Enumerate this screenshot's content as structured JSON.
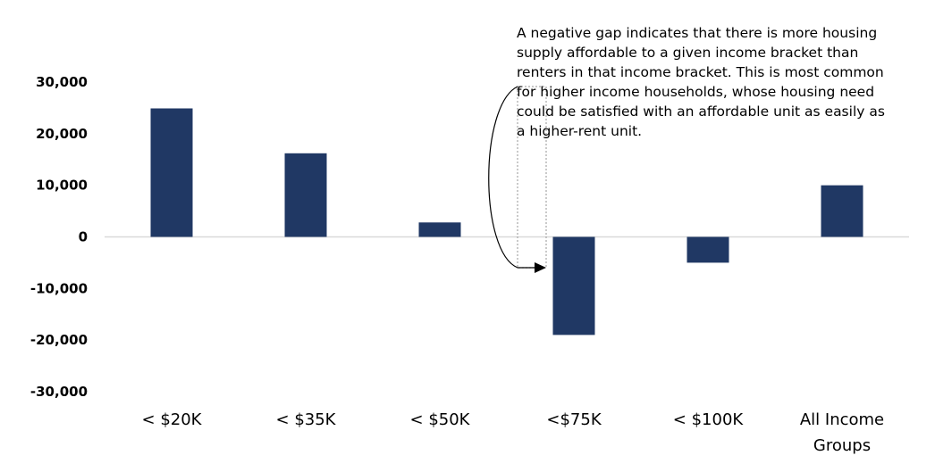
{
  "chart_data": {
    "type": "bar",
    "categories": [
      "< $20K",
      "< $35K",
      "< $50K",
      "<$75K",
      "< $100K",
      "All Income Groups"
    ],
    "category_lines": [
      [
        "< $20K"
      ],
      [
        "< $35K"
      ],
      [
        "< $50K"
      ],
      [
        "<$75K"
      ],
      [
        "< $100K"
      ],
      [
        "All Income",
        "Groups"
      ]
    ],
    "values": [
      24900,
      16200,
      2800,
      -19000,
      -5000,
      10000
    ],
    "ylim": [
      -30000,
      30000
    ],
    "yticks": [
      30000,
      20000,
      10000,
      0,
      -10000,
      -20000,
      -30000
    ],
    "ytick_labels": [
      "30,000",
      "20,000",
      "10,000",
      "0",
      "-10,000",
      "-20,000",
      "-30,000"
    ],
    "bar_color": "#203864",
    "grid": false,
    "annotation": {
      "text": "A negative gap indicates that there is more housing supply affordable to a given income bracket than renters in that income bracket. This is most common for higher income households, whose housing need could be satisfied with an affordable unit as easily as a higher-rent unit.",
      "target_category": "<$75K"
    }
  }
}
